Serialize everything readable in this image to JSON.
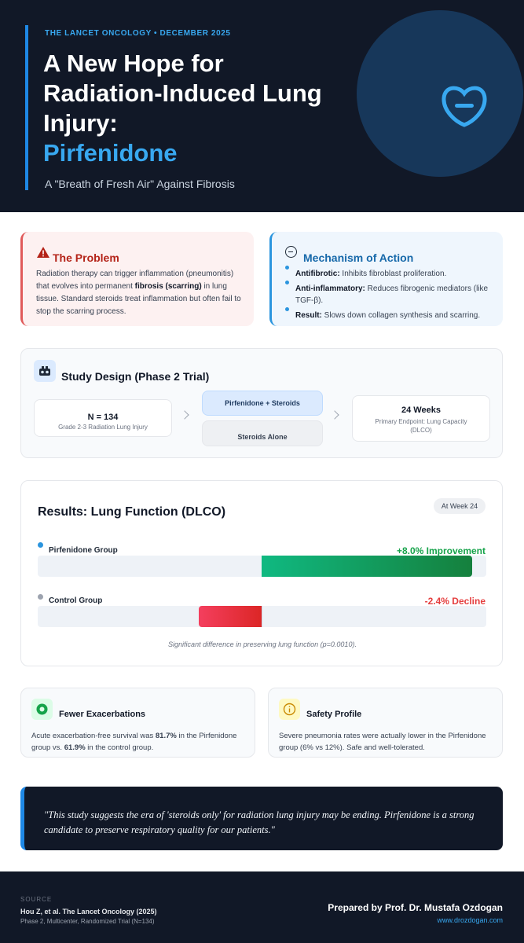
{
  "header": {
    "journal": "THE LANCET ONCOLOGY • DECEMBER 2025",
    "title_lines": [
      "A New Hope for",
      "Radiation-Induced Lung",
      "Injury:"
    ],
    "drug": "Pirfenidone",
    "subtitle": "A \"Breath of Fresh Air\" Against Fibrosis",
    "logo_icon": "lung-heart-logo-icon",
    "accent_color": "#38a8f0"
  },
  "problem": {
    "icon": "warning-icon",
    "title": "The Problem",
    "text_1": "Radiation therapy can trigger inflammation (pneumonitis) that evolves into permanent ",
    "text_bold": "fibrosis (scarring)",
    "text_2": " in lung tissue. Standard steroids treat inflammation but often fail to stop the scarring process."
  },
  "mechanism": {
    "icon": "mechanism-circle-icon",
    "title": "Mechanism of Action",
    "items": [
      {
        "label": "Antifibrotic:",
        "text": " Inhibits fibroblast proliferation."
      },
      {
        "label": "Anti-inflammatory:",
        "text": " Reduces fibrogenic mediators (like TGF-β)."
      },
      {
        "label": "Result:",
        "text": " Slows down collagen synthesis and scarring."
      }
    ]
  },
  "study": {
    "icon": "study-design-icon",
    "title": "Study Design (Phase 2 Trial)",
    "n": "N = 134",
    "n_detail": "Grade 2-3 Radiation Lung Injury",
    "arm1": "Pirfenidone + Steroids",
    "arm2": "Steroids Alone",
    "duration": "24 Weeks",
    "endpoint": "Primary Endpoint: Lung Capacity (DLCO)"
  },
  "results": {
    "title": "Results: Lung Function (DLCO)",
    "badge": "At Week 24",
    "groups": [
      {
        "label": "Pirfenidone Group",
        "value_text": "+8.0% Improvement",
        "value": 8.0,
        "color": "#16a34a",
        "dot": "#2b95de"
      },
      {
        "label": "Control Group",
        "value_text": "-2.4% Decline",
        "value": -2.4,
        "color": "#e53e3e",
        "dot": "#9ca3af"
      }
    ],
    "scale_max": 8.5,
    "note": "Significant difference in preserving lung function (p=0.0010)."
  },
  "exacerbations": {
    "icon": "target-icon",
    "title": "Fewer Exacerbations",
    "text_1": "Acute exacerbation-free survival was ",
    "val_1": "81.7%",
    "text_2": " in the Pirfenidone group vs. ",
    "val_2": "61.9%",
    "text_3": " in the control group."
  },
  "safety": {
    "icon": "info-icon",
    "title": "Safety Profile",
    "text": "Severe pneumonia rates were actually lower in the Pirfenidone group (6% vs 12%). Safe and well-tolerated."
  },
  "quote": "\"This study suggests the era of 'steroids only' for radiation lung injury may be ending. Pirfenidone is a strong candidate to preserve respiratory quality for our patients.\"",
  "footer": {
    "source_label": "SOURCE",
    "citation": "Hou Z, et al. The Lancet Oncology (2025)",
    "detail": "Phase 2, Multicenter, Randomized Trial (N=134)",
    "prepared_by": "Prepared by Prof. Dr. Mustafa Ozdogan",
    "website": "www.drozdogan.com"
  }
}
